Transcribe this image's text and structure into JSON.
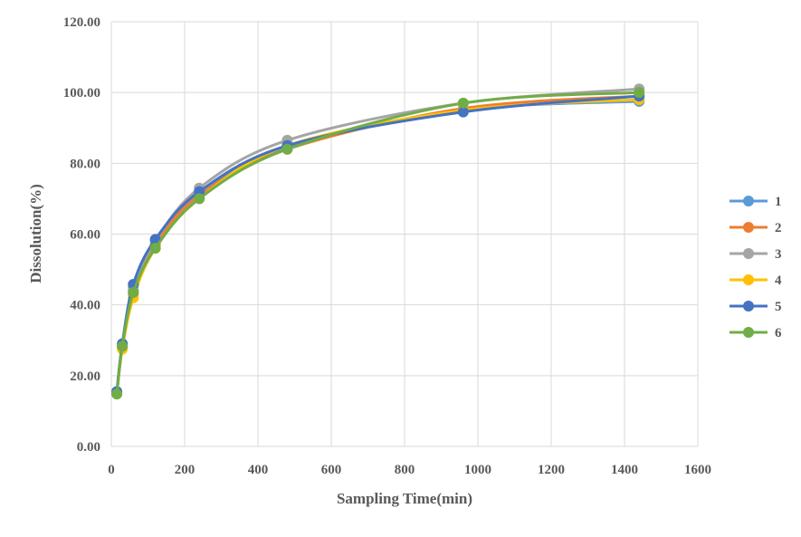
{
  "chart_data": {
    "type": "line",
    "title": "",
    "xlabel": "Sampling Time(min)",
    "ylabel": "Dissolution(%)",
    "xlim": [
      0,
      1600
    ],
    "ylim": [
      0,
      120
    ],
    "xticks": [
      "0",
      "200",
      "400",
      "600",
      "800",
      "1000",
      "1200",
      "1400",
      "1600"
    ],
    "yticks": [
      "0.00",
      "20.00",
      "40.00",
      "60.00",
      "80.00",
      "100.00",
      "120.00"
    ],
    "grid": true,
    "legend_position": "right",
    "x": [
      15,
      30,
      60,
      120,
      240,
      480,
      960,
      1440
    ],
    "series": [
      {
        "name": "1",
        "color": "#5B9BD5",
        "values": [
          15.2,
          28.5,
          44,
          57,
          71,
          84.5,
          95,
          97.5
        ]
      },
      {
        "name": "2",
        "color": "#ED7D31",
        "values": [
          15.0,
          28,
          43,
          57,
          71,
          84,
          95.5,
          99
        ]
      },
      {
        "name": "3",
        "color": "#A5A5A5",
        "values": [
          15.3,
          28.8,
          45,
          58,
          73,
          86.5,
          97,
          101
        ]
      },
      {
        "name": "4",
        "color": "#FFC000",
        "values": [
          14.9,
          27.5,
          42,
          56,
          70,
          85,
          95,
          98
        ]
      },
      {
        "name": "5",
        "color": "#4472C4",
        "values": [
          15.5,
          29,
          45.8,
          58.5,
          72,
          85,
          94.5,
          99
        ]
      },
      {
        "name": "6",
        "color": "#70AD47",
        "values": [
          14.8,
          28.3,
          43.5,
          56,
          70,
          84,
          97,
          100
        ]
      }
    ]
  }
}
